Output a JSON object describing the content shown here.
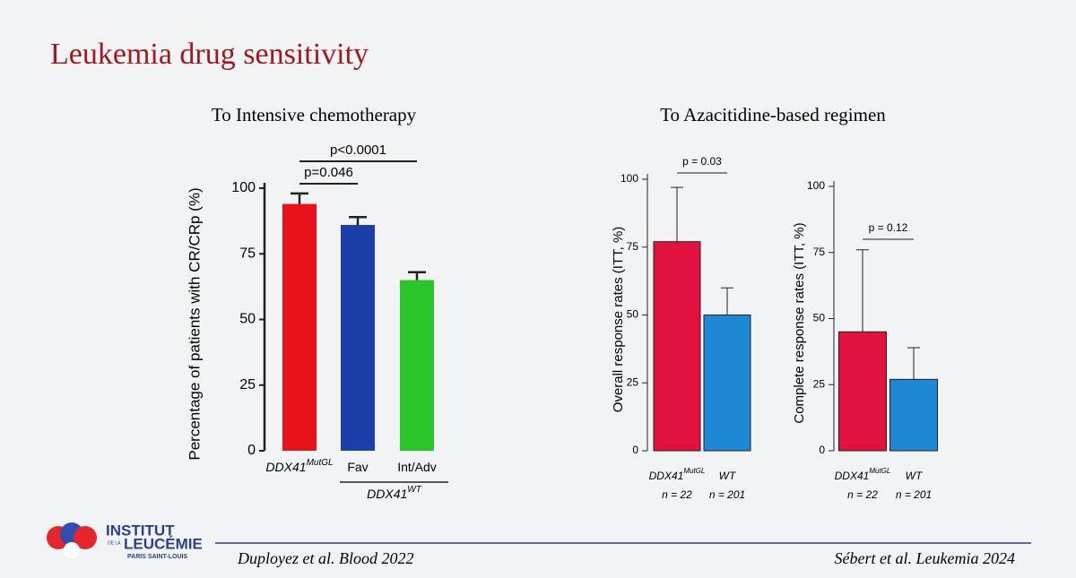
{
  "slide_title": "Leukemia drug sensitivity",
  "references": [
    "Duployez et al. Blood 2022",
    "Sébert et al. Leukemia 2024"
  ],
  "logo": {
    "line1": "INSTITUT",
    "line2": "DE LA",
    "line3": "LEUCÉMIE",
    "line4": "PARIS SAINT-LOUIS"
  },
  "chart_data": [
    {
      "type": "bar",
      "title": "To Intensive chemotherapy",
      "y_label": "Percentage of patients with CR/CRp (%)",
      "categories": [
        "DDX41",
        "Fav",
        "Int/Adv"
      ],
      "category_superscripts": [
        "MutGL",
        null,
        null
      ],
      "group_label": {
        "text": "DDX41",
        "sup": "WT",
        "from": 1,
        "to": 2
      },
      "values": [
        94,
        86,
        65
      ],
      "errors": [
        4,
        3,
        3
      ],
      "colors": [
        "#e8121c",
        "#1c3ea8",
        "#2bc42a"
      ],
      "ylim": [
        0,
        100
      ],
      "yticks": [
        0,
        25,
        50,
        75,
        100
      ],
      "significance": [
        {
          "label": "p=0.046",
          "from": 0,
          "to": 1
        },
        {
          "label": "p<0.0001",
          "from": 0,
          "to": 2
        }
      ]
    },
    {
      "type": "bar",
      "title": "To Azacitidine-based regimen",
      "y_label": "Overall response rates (ITT, %)",
      "categories": [
        "DDX41",
        "WT"
      ],
      "category_superscripts": [
        "MutGL",
        null
      ],
      "category_sublabels": [
        "n = 22",
        "n = 201"
      ],
      "values": [
        77,
        50
      ],
      "errors": [
        20,
        10
      ],
      "colors": [
        "#e2123e",
        "#1e88d6"
      ],
      "ylim": [
        0,
        100
      ],
      "yticks": [
        0,
        25,
        50,
        75,
        100
      ],
      "significance": [
        {
          "label": "p = 0.03",
          "from": 0,
          "to": 1
        }
      ]
    },
    {
      "type": "bar",
      "y_label": "Complete response rates (ITT, %)",
      "categories": [
        "DDX41",
        "WT"
      ],
      "category_superscripts": [
        "MutGL",
        null
      ],
      "category_sublabels": [
        "n = 22",
        "n = 201"
      ],
      "values": [
        45,
        27
      ],
      "errors": [
        31,
        12
      ],
      "colors": [
        "#e2123e",
        "#1e88d6"
      ],
      "ylim": [
        0,
        100
      ],
      "yticks": [
        0,
        25,
        50,
        75,
        100
      ],
      "significance": [
        {
          "label": "p = 0.12",
          "from": 0,
          "to": 1
        }
      ]
    }
  ]
}
